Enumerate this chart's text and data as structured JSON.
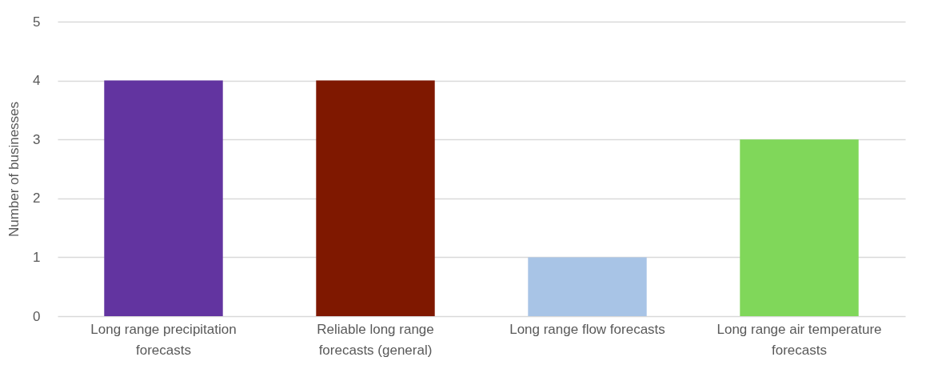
{
  "chart_data": {
    "type": "bar",
    "ylabel": "Number of businesses",
    "categories": [
      "Long range precipitation forecasts",
      "Reliable long range forecasts (general)",
      "Long range flow forecasts",
      "Long range air temperature forecasts"
    ],
    "values": [
      4,
      4,
      1,
      3
    ],
    "colors": [
      "#6234a0",
      "#7f1800",
      "#a8c4e6",
      "#80d75a"
    ],
    "ylim": [
      0,
      5
    ],
    "yticks": [
      0,
      1,
      2,
      3,
      4,
      5
    ],
    "grid": "y",
    "legend": false
  }
}
